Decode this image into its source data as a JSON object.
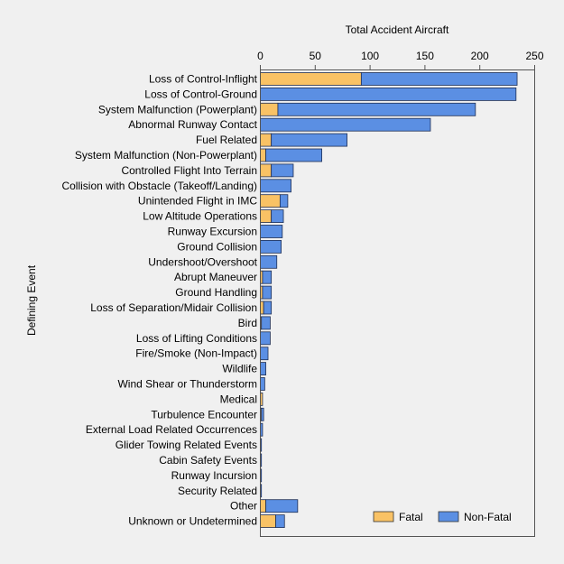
{
  "chart_data": {
    "type": "bar",
    "orientation": "horizontal",
    "stacked": true,
    "xlabel": "Total Accident Aircraft",
    "ylabel": "Defining Event",
    "xlim": [
      0,
      250
    ],
    "xticks": [
      0,
      50,
      100,
      150,
      200,
      250
    ],
    "xaxis_position": "top",
    "grid": false,
    "legend_position": "bottom-right",
    "categories": [
      "Loss of Control-Inflight",
      "Loss of Control-Ground",
      "System Malfunction (Powerplant)",
      "Abnormal Runway Contact",
      "Fuel Related",
      "System Malfunction (Non-Powerplant)",
      "Controlled Flight Into Terrain",
      "Collision with Obstacle (Takeoff/Landing)",
      "Unintended Flight in IMC",
      "Low Altitude Operations",
      "Runway Excursion",
      "Ground Collision",
      "Undershoot/Overshoot",
      "Abrupt Maneuver",
      "Ground Handling",
      "Loss of Separation/Midair Collision",
      "Bird",
      "Loss of Lifting Conditions",
      "Fire/Smoke (Non-Impact)",
      "Wildlife",
      "Wind Shear or Thunderstorm",
      "Medical",
      "Turbulence Encounter",
      "External Load Related Occurrences",
      "Glider Towing Related Events",
      "Cabin Safety Events",
      "Runway Incursion",
      "Security Related",
      "Other",
      "Unknown or Undetermined"
    ],
    "series": [
      {
        "name": "Fatal",
        "color": "#f9c265",
        "values": [
          92,
          0,
          16,
          0,
          10,
          5,
          10,
          0,
          18,
          10,
          0,
          0,
          0,
          2,
          2,
          3,
          1,
          0,
          0,
          0,
          0,
          2,
          1,
          0,
          0,
          0,
          0,
          0,
          5,
          14
        ]
      },
      {
        "name": "Non-Fatal",
        "color": "#5b8fe3",
        "values": [
          142,
          233,
          180,
          155,
          69,
          51,
          20,
          28,
          7,
          11,
          20,
          19,
          15,
          8,
          8,
          7,
          8,
          9,
          7,
          5,
          4,
          0,
          2,
          2,
          1,
          1,
          1,
          1,
          29,
          8
        ]
      }
    ]
  }
}
